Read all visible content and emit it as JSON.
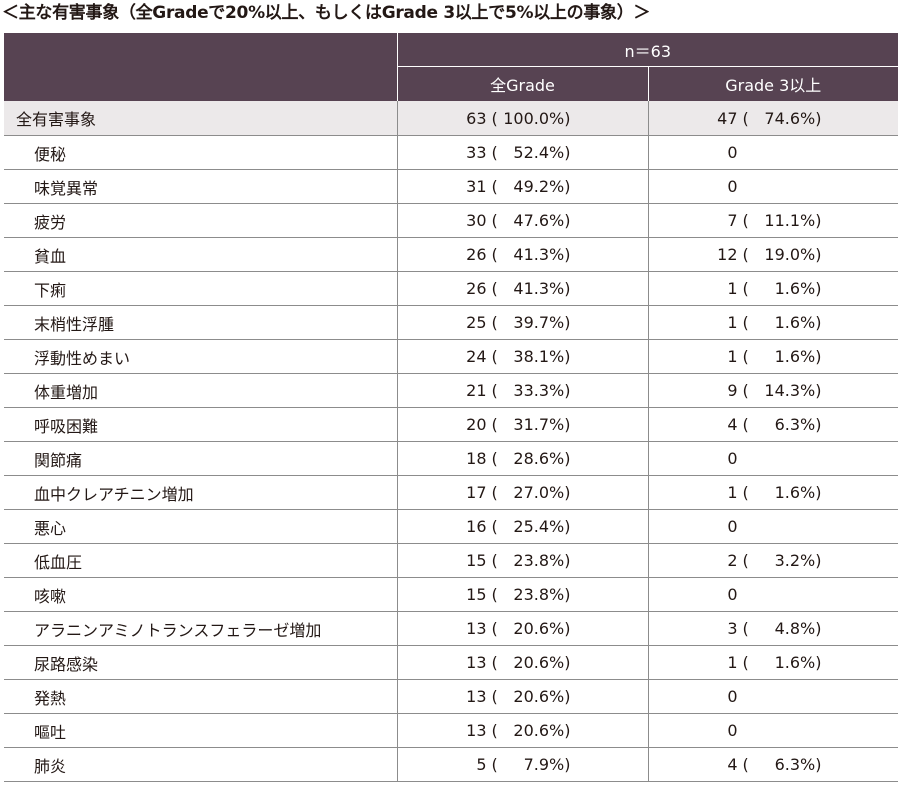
{
  "title": "＜主な有害事象（全Gradeで20%以上、もしくはGrade 3以上で5%以上の事象）＞",
  "header": {
    "n_label": "n＝63",
    "col_all": "全Grade",
    "col_g3": "Grade 3以上"
  },
  "rows": [
    {
      "name": "全有害事象",
      "all_n": "63",
      "all_pct": "100.0%)",
      "g3_n": "47",
      "g3_pct": "74.6%)"
    },
    {
      "name": "便秘",
      "all_n": "33",
      "all_pct": "52.4%)",
      "g3_n": "0",
      "g3_pct": ""
    },
    {
      "name": "味覚異常",
      "all_n": "31",
      "all_pct": "49.2%)",
      "g3_n": "0",
      "g3_pct": ""
    },
    {
      "name": "疲労",
      "all_n": "30",
      "all_pct": "47.6%)",
      "g3_n": "7",
      "g3_pct": "11.1%)"
    },
    {
      "name": "貧血",
      "all_n": "26",
      "all_pct": "41.3%)",
      "g3_n": "12",
      "g3_pct": "19.0%)"
    },
    {
      "name": "下痢",
      "all_n": "26",
      "all_pct": "41.3%)",
      "g3_n": "1",
      "g3_pct": "1.6%)"
    },
    {
      "name": "末梢性浮腫",
      "all_n": "25",
      "all_pct": "39.7%)",
      "g3_n": "1",
      "g3_pct": "1.6%)"
    },
    {
      "name": "浮動性めまい",
      "all_n": "24",
      "all_pct": "38.1%)",
      "g3_n": "1",
      "g3_pct": "1.6%)"
    },
    {
      "name": "体重増加",
      "all_n": "21",
      "all_pct": "33.3%)",
      "g3_n": "9",
      "g3_pct": "14.3%)"
    },
    {
      "name": "呼吸困難",
      "all_n": "20",
      "all_pct": "31.7%)",
      "g3_n": "4",
      "g3_pct": "6.3%)"
    },
    {
      "name": "関節痛",
      "all_n": "18",
      "all_pct": "28.6%)",
      "g3_n": "0",
      "g3_pct": ""
    },
    {
      "name": "血中クレアチニン増加",
      "all_n": "17",
      "all_pct": "27.0%)",
      "g3_n": "1",
      "g3_pct": "1.6%)"
    },
    {
      "name": "悪心",
      "all_n": "16",
      "all_pct": "25.4%)",
      "g3_n": "0",
      "g3_pct": ""
    },
    {
      "name": "低血圧",
      "all_n": "15",
      "all_pct": "23.8%)",
      "g3_n": "2",
      "g3_pct": "3.2%)"
    },
    {
      "name": "咳嗽",
      "all_n": "15",
      "all_pct": "23.8%)",
      "g3_n": "0",
      "g3_pct": ""
    },
    {
      "name": "アラニンアミノトランスフェラーゼ増加",
      "all_n": "13",
      "all_pct": "20.6%)",
      "g3_n": "3",
      "g3_pct": "4.8%)"
    },
    {
      "name": "尿路感染",
      "all_n": "13",
      "all_pct": "20.6%)",
      "g3_n": "1",
      "g3_pct": "1.6%)"
    },
    {
      "name": "発熱",
      "all_n": "13",
      "all_pct": "20.6%)",
      "g3_n": "0",
      "g3_pct": ""
    },
    {
      "name": "嘔吐",
      "all_n": "13",
      "all_pct": "20.6%)",
      "g3_n": "0",
      "g3_pct": ""
    },
    {
      "name": "肺炎",
      "all_n": "5",
      "all_pct": "7.9%)",
      "g3_n": "4",
      "g3_pct": "6.3%)"
    }
  ]
}
